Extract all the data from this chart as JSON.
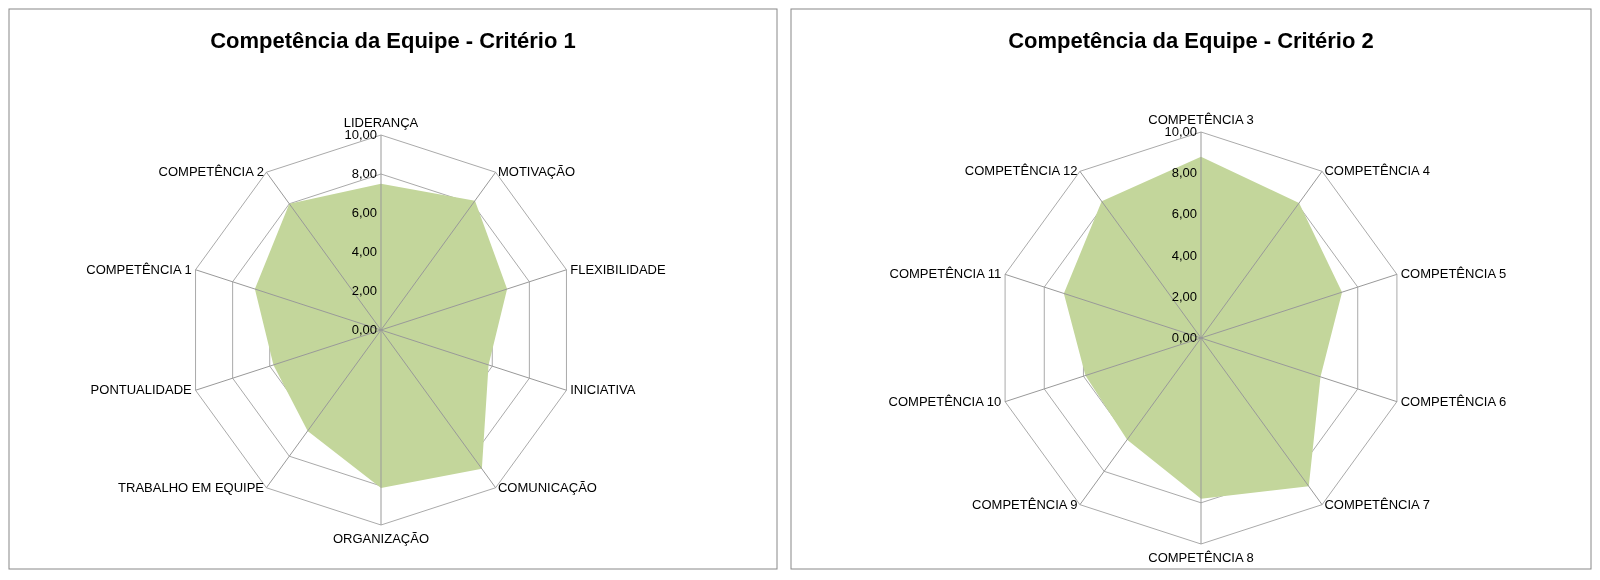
{
  "chart_data": [
    {
      "type": "radar",
      "title": "Competência da Equipe - Critério 1",
      "categories": [
        "LIDERANÇA",
        "MOTIVAÇÃO",
        "FLEXIBILIDADE",
        "INICIATIVA",
        "COMUNICAÇÃO",
        "ORGANIZAÇÃO",
        "TRABALHO EM EQUIPE",
        "PONTUALIDADE",
        "COMPETÊNCIA 1",
        "COMPETÊNCIA 2"
      ],
      "series": [
        {
          "color": "#c3d69b",
          "values": [
            7.5,
            8.2,
            6.8,
            5.8,
            8.8,
            8.1,
            6.4,
            5.8,
            6.8,
            8.0
          ]
        }
      ],
      "ylim": [
        0,
        10
      ],
      "yticks": [
        {
          "value": 0,
          "label": "0,00"
        },
        {
          "value": 2,
          "label": "2,00"
        },
        {
          "value": 4,
          "label": "4,00"
        },
        {
          "value": 6,
          "label": "6,00"
        },
        {
          "value": 8,
          "label": "8,00"
        },
        {
          "value": 10,
          "label": "10,00"
        }
      ],
      "grid": true
    },
    {
      "type": "radar",
      "title": "Competência da Equipe - Critério 2",
      "categories": [
        "COMPETÊNCIA 3",
        "COMPETÊNCIA 4",
        "COMPETÊNCIA 5",
        "COMPETÊNCIA 6",
        "COMPETÊNCIA 7",
        "COMPETÊNCIA 8",
        "COMPETÊNCIA 9",
        "COMPETÊNCIA 10",
        "COMPETÊNCIA 11",
        "COMPETÊNCIA 12"
      ],
      "series": [
        {
          "color": "#c3d69b",
          "values": [
            8.8,
            8.1,
            7.2,
            6.1,
            8.9,
            7.8,
            6.1,
            5.9,
            7.0,
            8.2
          ]
        }
      ],
      "ylim": [
        0,
        10
      ],
      "yticks": [
        {
          "value": 0,
          "label": "0,00"
        },
        {
          "value": 2,
          "label": "2,00"
        },
        {
          "value": 4,
          "label": "4,00"
        },
        {
          "value": 6,
          "label": "6,00"
        },
        {
          "value": 8,
          "label": "8,00"
        },
        {
          "value": 10,
          "label": "10,00"
        }
      ],
      "grid": true
    }
  ]
}
